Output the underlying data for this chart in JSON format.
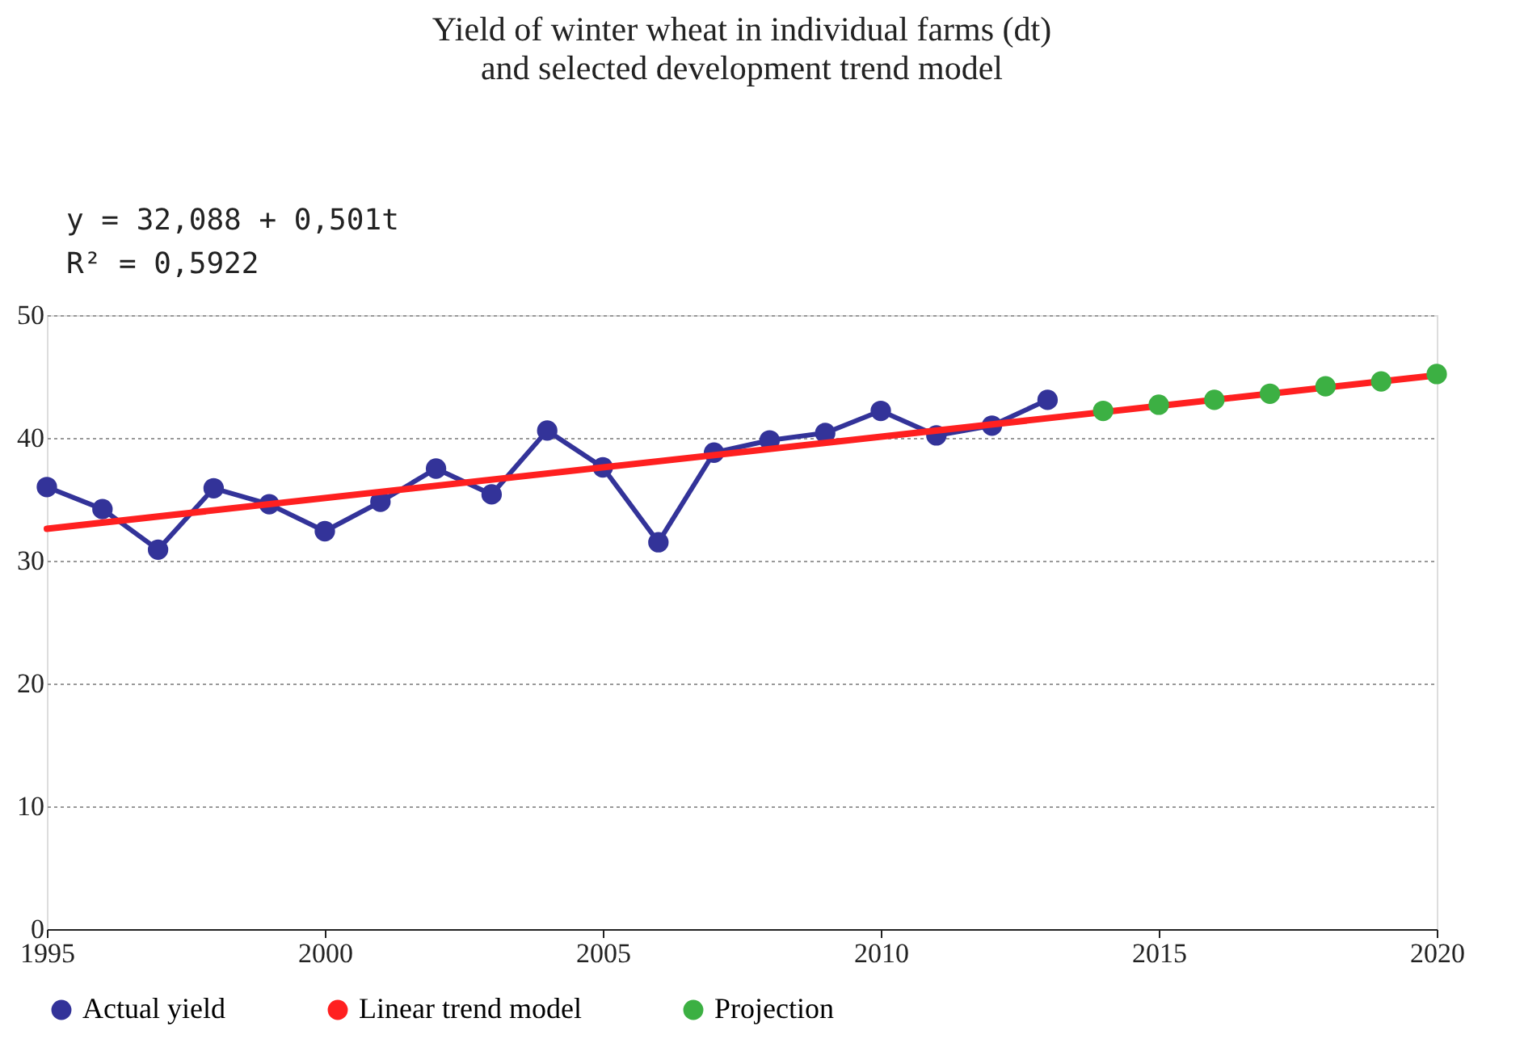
{
  "chart_data": {
    "type": "line",
    "title": "Yield of winter wheat in individual farms (dt)",
    "subtitle": "and selected development trend model",
    "annotations": [
      "y = 32,088 + 0,501t",
      "R² = 0,5922"
    ],
    "xlim": [
      1995,
      2020
    ],
    "xticks": [
      1995,
      2000,
      2005,
      2010,
      2015,
      2020
    ],
    "ylim": [
      0,
      50
    ],
    "yticks": [
      0,
      10,
      20,
      30,
      40,
      50
    ],
    "grid": "y",
    "legend": "bottom",
    "series": [
      {
        "name": "Actual yield",
        "marker": "circle",
        "color": "#333399",
        "x": [
          1995,
          1996,
          1997,
          1998,
          1999,
          2000,
          2001,
          2002,
          2003,
          2004,
          2005,
          2006,
          2007,
          2008,
          2009,
          2010,
          2011,
          2012,
          2013
        ],
        "values": [
          36.0,
          34.2,
          30.9,
          35.9,
          34.6,
          32.4,
          34.8,
          37.5,
          35.4,
          40.6,
          37.6,
          31.5,
          38.8,
          39.8,
          40.4,
          42.2,
          40.2,
          41.0,
          43.1
        ]
      },
      {
        "name": "Linear trend model",
        "marker": "none",
        "color": "#ff2020",
        "x": [
          1995,
          2020
        ],
        "values": [
          32.6,
          45.1
        ]
      },
      {
        "name": "Projection",
        "type": "scatter",
        "marker": "circle",
        "color": "#3cb043",
        "x": [
          2014,
          2015,
          2016,
          2017,
          2018,
          2019,
          2020
        ],
        "values": [
          42.2,
          42.7,
          43.1,
          43.6,
          44.2,
          44.6,
          45.2
        ]
      }
    ]
  }
}
